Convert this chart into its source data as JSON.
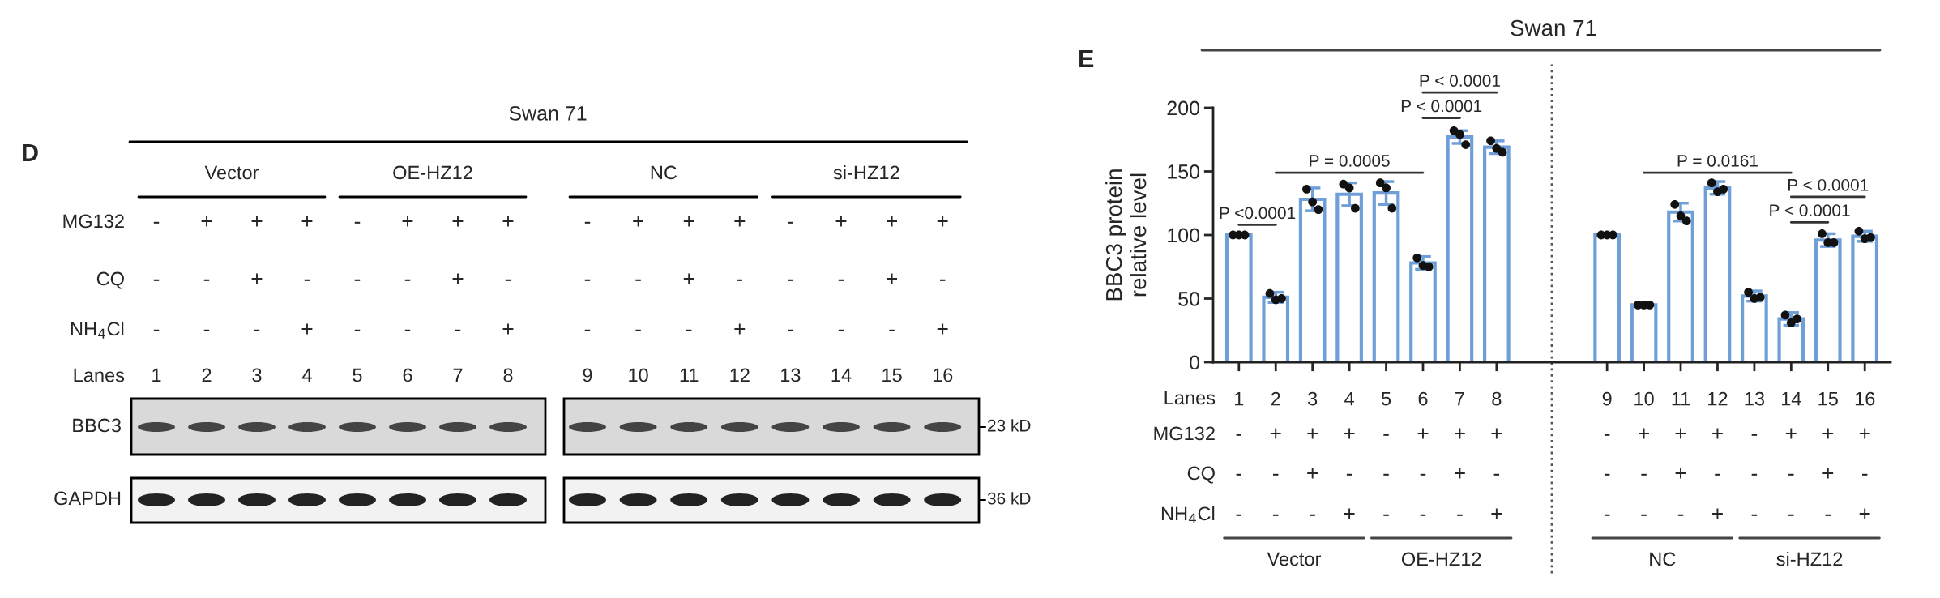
{
  "chart_data": [
    {
      "type": "other",
      "title": "Swan 71",
      "categories": [
        "1",
        "2",
        "3",
        "4",
        "5",
        "6",
        "7",
        "8",
        "9",
        "10",
        "11",
        "12",
        "13",
        "14",
        "15",
        "16"
      ],
      "annotations": [
        "D",
        "Vector",
        "OE-HZ12",
        "NC",
        "si-HZ12",
        "MG132",
        "-",
        "+",
        "+",
        "+",
        "-",
        "+",
        "+",
        "+",
        "-",
        "+",
        "+",
        "+",
        "-",
        "+",
        "+",
        "+",
        "CQ",
        "-",
        "-",
        "+",
        "-",
        "-",
        "-",
        "+",
        "-",
        "-",
        "-",
        "+",
        "-",
        "-",
        "-",
        "+",
        "-",
        "NH$_{4}$Cl",
        "-",
        "-",
        "-",
        "+",
        "-",
        "-",
        "-",
        "+",
        "-",
        "-",
        "-",
        "+",
        "-",
        "-",
        "-",
        "+",
        "Lanes",
        "BBC3",
        "GAPDH",
        "23 kD",
        "36 kD"
      ]
    },
    {
      "type": "bar",
      "title": "Swan 71",
      "ylabel": "BBC3 protein\nrelative level",
      "categories": [
        "1",
        "2",
        "3",
        "4",
        "5",
        "6",
        "7",
        "8",
        null,
        null,
        "9",
        "10",
        "11",
        "12",
        "13",
        "14",
        "15",
        "16"
      ],
      "ylim": [
        0,
        200
      ],
      "yticks": [
        0,
        50,
        100,
        150,
        200
      ],
      "grid": false,
      "marker": "circle",
      "series": [
        {
          "type": "bar",
          "color": "#6f9fd8",
          "values": [
            100,
            51,
            128,
            132,
            133,
            78,
            177,
            169,
            null,
            null,
            100,
            45,
            118,
            137,
            52,
            34,
            96,
            99
          ],
          "errors": [
            0,
            4,
            9,
            9,
            9,
            5,
            5,
            5,
            null,
            null,
            0,
            null,
            7,
            5,
            4,
            5,
            5,
            4
          ]
        },
        {
          "type": "scatter",
          "color": "#111111",
          "x": [
            "1",
            "1",
            "1",
            "2",
            "2",
            "2",
            "3",
            "3",
            "3",
            "4",
            "4",
            "4",
            "5",
            "5",
            "5",
            "6",
            "6",
            "6",
            "7",
            "7",
            "7",
            "8",
            "8",
            "8",
            "9",
            "9",
            "9",
            "10",
            "10",
            "10",
            "11",
            "11",
            "11",
            "12",
            "12",
            "12",
            "13",
            "13",
            "13",
            "14",
            "14",
            "14",
            "15",
            "15",
            "15",
            "16",
            "16",
            "16"
          ],
          "values": [
            100,
            100,
            100,
            54,
            49,
            50,
            136,
            126,
            120,
            140,
            137,
            121,
            141,
            137,
            121,
            82,
            76,
            75,
            182,
            179,
            171,
            174,
            168,
            165,
            100,
            100,
            100,
            45,
            45,
            45,
            124,
            115,
            111,
            141,
            134,
            136,
            55,
            50,
            51,
            37,
            31,
            34,
            101,
            94,
            94,
            103,
            97,
            98
          ]
        }
      ],
      "annotations": [
        "E",
        "P <0.0001",
        "P = 0.0005",
        "P < 0.0001",
        "P < 0.0001",
        "P = 0.0161",
        "P < 0.0001",
        "P < 0.0001",
        "MG132",
        "-",
        "+",
        "+",
        "+",
        "-",
        "+",
        "+",
        "+",
        "-",
        "+",
        "+",
        "+",
        "-",
        "+",
        "+",
        "+",
        "CQ",
        "-",
        "-",
        "+",
        "-",
        "-",
        "-",
        "+",
        "-",
        "-",
        "-",
        "+",
        "-",
        "-",
        "-",
        "+",
        "-",
        "NH$_{4}$Cl",
        "-",
        "-",
        "-",
        "+",
        "-",
        "-",
        "-",
        "+",
        "-",
        "-",
        "-",
        "+",
        "-",
        "-",
        "-",
        "+",
        "Lanes",
        "Vector",
        "OE-HZ12",
        "NC",
        "si-HZ12"
      ]
    }
  ]
}
